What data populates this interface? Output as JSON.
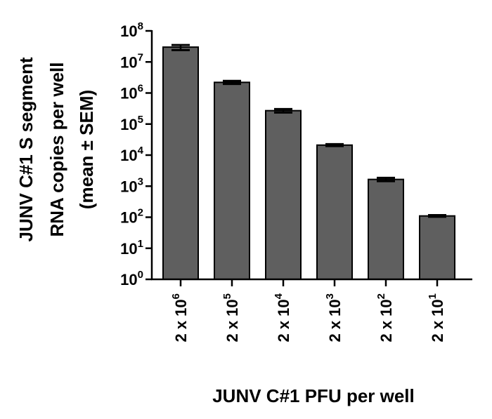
{
  "chart_data": {
    "type": "bar",
    "yscale": "log",
    "ylim_exponents": [
      0,
      8
    ],
    "y_tick_exponents": [
      0,
      1,
      2,
      3,
      4,
      5,
      6,
      7,
      8
    ],
    "y_tick_base": "10",
    "ylabel_lines": [
      "JUNV C#1 S segment",
      "RNA copies per well",
      "(mean ± SEM)"
    ],
    "xlabel": "JUNV C#1 PFU per well",
    "categories": [
      {
        "prefix": "2 x 10",
        "exponent": "6"
      },
      {
        "prefix": "2 x 10",
        "exponent": "5"
      },
      {
        "prefix": "2 x 10",
        "exponent": "4"
      },
      {
        "prefix": "2 x 10",
        "exponent": "3"
      },
      {
        "prefix": "2 x 10",
        "exponent": "2"
      },
      {
        "prefix": "2 x 10",
        "exponent": "1"
      }
    ],
    "values": [
      30000000,
      2200000,
      270000,
      21000,
      1650,
      110
    ],
    "error_low": [
      24000000,
      1950000,
      235000,
      19500,
      1450,
      103
    ],
    "error_high": [
      35000000,
      2450000,
      305000,
      22500,
      1850,
      117
    ],
    "bar_color": "#5f5f5f",
    "bar_edge_color": "#000000"
  }
}
